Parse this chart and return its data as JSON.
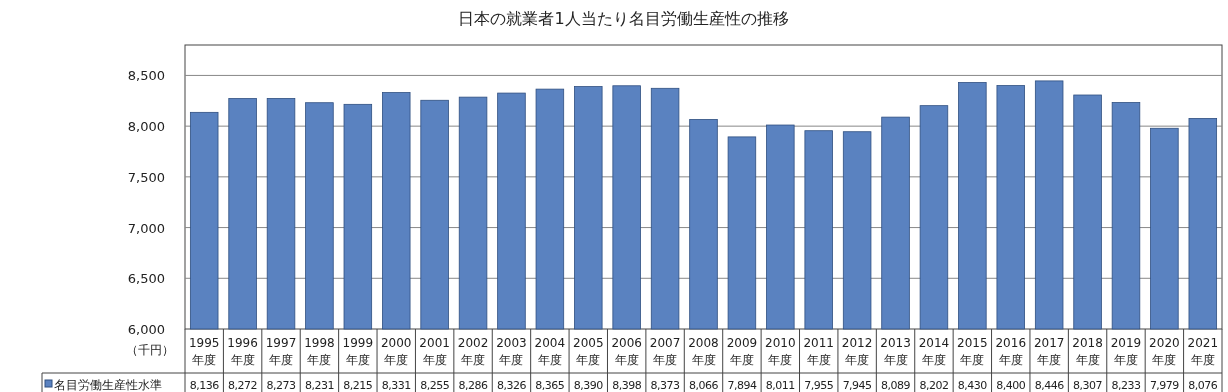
{
  "chart_data": {
    "type": "bar",
    "title": "日本の就業者1人当たり名目労働生産性の推移",
    "ylabel": "（千円）",
    "categories": [
      "1995\n年度",
      "1996\n年度",
      "1997\n年度",
      "1998\n年度",
      "1999\n年度",
      "2000\n年度",
      "2001\n年度",
      "2002\n年度",
      "2003\n年度",
      "2004\n年度",
      "2005\n年度",
      "2006\n年度",
      "2007\n年度",
      "2008\n年度",
      "2009\n年度",
      "2010\n年度",
      "2011\n年度",
      "2012\n年度",
      "2013\n年度",
      "2014\n年度",
      "2015\n年度",
      "2016\n年度",
      "2017\n年度",
      "2018\n年度",
      "2019\n年度",
      "2020\n年度",
      "2021\n年度"
    ],
    "series": [
      {
        "name": "名目労働生産性水準",
        "color": "#5a82c0",
        "values": [
          8136,
          8272,
          8273,
          8231,
          8215,
          8331,
          8255,
          8286,
          8326,
          8365,
          8390,
          8398,
          8373,
          8066,
          7894,
          8011,
          7955,
          7945,
          8089,
          8202,
          8430,
          8400,
          8446,
          8307,
          8233,
          7979,
          8076
        ],
        "value_labels": [
          "8,136",
          "8,272",
          "8,273",
          "8,231",
          "8,215",
          "8,331",
          "8,255",
          "8,286",
          "8,326",
          "8,365",
          "8,390",
          "8,398",
          "8,373",
          "8,066",
          "7,894",
          "8,011",
          "7,955",
          "7,945",
          "8,089",
          "8,202",
          "8,430",
          "8,400",
          "8,446",
          "8,307",
          "8,233",
          "7,979",
          "8,076"
        ]
      }
    ],
    "ylim": [
      6000,
      8800
    ],
    "yticks": [
      {
        "value": 6000,
        "label": "6,000"
      },
      {
        "value": 6500,
        "label": "6,500"
      },
      {
        "value": 7000,
        "label": "7,000"
      },
      {
        "value": 7500,
        "label": "7,500"
      },
      {
        "value": 8000,
        "label": "8,000"
      },
      {
        "value": 8500,
        "label": "8,500"
      }
    ],
    "grid": "y",
    "legend": "bottom left"
  }
}
